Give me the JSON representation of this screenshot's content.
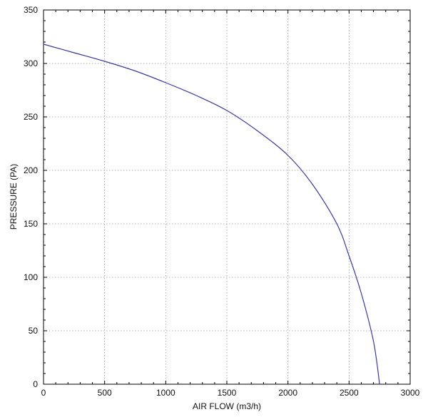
{
  "chart_data": {
    "type": "line",
    "xlabel": "AIR FLOW (m3/h)",
    "ylabel": "PRESSURE (PA)",
    "xlim": [
      0,
      3000
    ],
    "ylim": [
      0,
      350
    ],
    "xticks": [
      0,
      500,
      1000,
      1500,
      2000,
      2500,
      3000
    ],
    "yticks": [
      0,
      50,
      100,
      150,
      200,
      250,
      300,
      350
    ],
    "grid": true,
    "line_color": "#3a3a9a",
    "series": [
      {
        "x": [
          0,
          250,
          500,
          750,
          1000,
          1250,
          1500,
          1750,
          2000,
          2200,
          2400,
          2500,
          2600,
          2700,
          2750
        ],
        "y": [
          318,
          310,
          302,
          293,
          282,
          270,
          256,
          237,
          214,
          187,
          150,
          120,
          85,
          40,
          0
        ]
      }
    ]
  }
}
